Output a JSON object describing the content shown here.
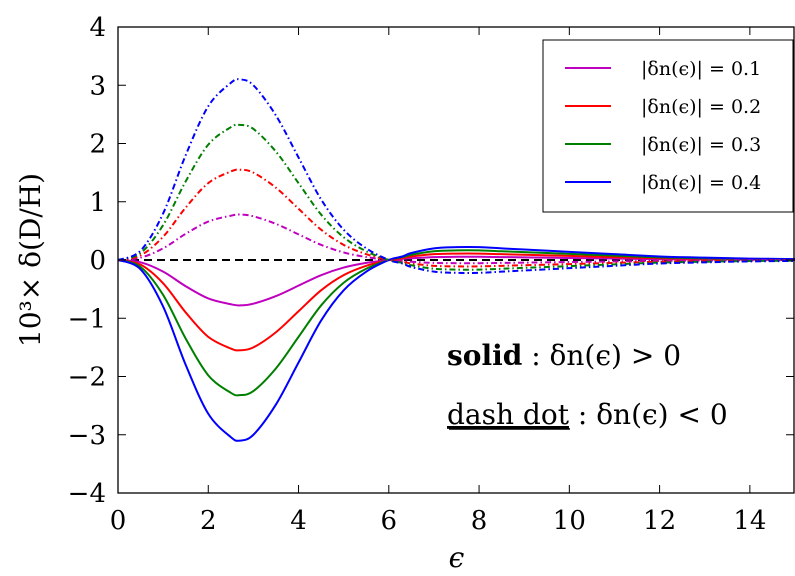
{
  "chart_data": {
    "type": "line",
    "xlabel": "ϵ",
    "ylabel": "10³× δ(D/H)",
    "xlim": [
      0,
      15
    ],
    "ylim": [
      -4,
      4
    ],
    "xticks": [
      "0",
      "2",
      "4",
      "6",
      "8",
      "10",
      "12",
      "14"
    ],
    "yticks": [
      "4",
      "3",
      "2",
      "1",
      "0",
      "−1",
      "−2",
      "−3",
      "−4"
    ],
    "x": [
      0.0,
      0.5,
      1.0,
      1.5,
      2.0,
      2.5,
      2.7,
      3.0,
      3.5,
      4.0,
      4.5,
      5.0,
      5.5,
      6.0,
      6.3,
      6.5,
      7.0,
      7.5,
      8.0,
      8.5,
      9.0,
      10.0,
      11.0,
      12.0,
      13.0,
      14.0,
      15.0
    ],
    "zero_line": {
      "style": "dashed",
      "color": "#000000",
      "y": 0
    },
    "series": [
      {
        "name": "|δn(ϵ)| = 0.1",
        "color": "#bf00bf",
        "style": "solid",
        "values": [
          0.0,
          -0.04,
          -0.2,
          -0.45,
          -0.66,
          -0.76,
          -0.78,
          -0.75,
          -0.62,
          -0.44,
          -0.26,
          -0.13,
          -0.05,
          0.0,
          0.02,
          0.03,
          0.05,
          0.055,
          0.055,
          0.05,
          0.045,
          0.035,
          0.025,
          0.015,
          0.01,
          0.006,
          0.004
        ]
      },
      {
        "name": "|δn(ϵ)| = 0.2",
        "color": "#ff0000",
        "style": "solid",
        "values": [
          0.0,
          -0.08,
          -0.4,
          -0.9,
          -1.32,
          -1.52,
          -1.55,
          -1.5,
          -1.24,
          -0.88,
          -0.52,
          -0.26,
          -0.1,
          0.0,
          0.03,
          0.06,
          0.1,
          0.11,
          0.11,
          0.1,
          0.09,
          0.07,
          0.05,
          0.03,
          0.02,
          0.012,
          0.008
        ]
      },
      {
        "name": "|δn(ϵ)| = 0.3",
        "color": "#007f00",
        "style": "solid",
        "values": [
          0.0,
          -0.12,
          -0.6,
          -1.35,
          -1.98,
          -2.28,
          -2.32,
          -2.25,
          -1.86,
          -1.32,
          -0.78,
          -0.39,
          -0.15,
          0.0,
          0.05,
          0.09,
          0.15,
          0.165,
          0.165,
          0.15,
          0.135,
          0.105,
          0.075,
          0.045,
          0.03,
          0.018,
          0.012
        ]
      },
      {
        "name": "|δn(ϵ)| = 0.4",
        "color": "#0000ff",
        "style": "solid",
        "values": [
          0.0,
          -0.16,
          -0.8,
          -1.8,
          -2.64,
          -3.04,
          -3.1,
          -3.0,
          -2.48,
          -1.76,
          -1.04,
          -0.52,
          -0.2,
          0.0,
          0.06,
          0.12,
          0.2,
          0.22,
          0.22,
          0.2,
          0.18,
          0.14,
          0.1,
          0.06,
          0.04,
          0.024,
          0.016
        ]
      },
      {
        "name": "",
        "color": "#bf00bf",
        "style": "dashdot",
        "values": [
          0.0,
          0.04,
          0.2,
          0.45,
          0.66,
          0.76,
          0.78,
          0.75,
          0.62,
          0.44,
          0.26,
          0.13,
          0.05,
          0.0,
          -0.02,
          -0.03,
          -0.05,
          -0.055,
          -0.055,
          -0.05,
          -0.045,
          -0.035,
          -0.025,
          -0.015,
          -0.01,
          -0.006,
          -0.004
        ]
      },
      {
        "name": "",
        "color": "#ff0000",
        "style": "dashdot",
        "values": [
          0.0,
          0.08,
          0.4,
          0.9,
          1.32,
          1.52,
          1.55,
          1.5,
          1.24,
          0.88,
          0.52,
          0.26,
          0.1,
          0.0,
          -0.03,
          -0.06,
          -0.1,
          -0.11,
          -0.11,
          -0.1,
          -0.09,
          -0.07,
          -0.05,
          -0.03,
          -0.02,
          -0.012,
          -0.008
        ]
      },
      {
        "name": "",
        "color": "#007f00",
        "style": "dashdot",
        "values": [
          0.0,
          0.12,
          0.6,
          1.35,
          1.98,
          2.28,
          2.32,
          2.25,
          1.86,
          1.32,
          0.78,
          0.39,
          0.15,
          0.0,
          -0.05,
          -0.09,
          -0.15,
          -0.165,
          -0.165,
          -0.15,
          -0.135,
          -0.105,
          -0.075,
          -0.045,
          -0.03,
          -0.018,
          -0.012
        ]
      },
      {
        "name": "",
        "color": "#0000ff",
        "style": "dashdot",
        "values": [
          0.0,
          0.16,
          0.8,
          1.8,
          2.64,
          3.04,
          3.1,
          3.0,
          2.48,
          1.76,
          1.04,
          0.52,
          0.2,
          0.0,
          -0.06,
          -0.12,
          -0.2,
          -0.22,
          -0.22,
          -0.2,
          -0.18,
          -0.14,
          -0.1,
          -0.06,
          -0.04,
          -0.024,
          -0.016
        ]
      }
    ],
    "legend": {
      "placement": "top-right",
      "entries": [
        {
          "label": "|δn(ϵ)| = 0.1",
          "color": "#bf00bf"
        },
        {
          "label": "|δn(ϵ)| = 0.2",
          "color": "#ff0000"
        },
        {
          "label": "|δn(ϵ)| = 0.3",
          "color": "#007f00"
        },
        {
          "label": "|δn(ϵ)| = 0.4",
          "color": "#0000ff"
        }
      ]
    },
    "annotations": {
      "solid_bold": "solid",
      "solid_rest": " : δn(ϵ) > 0",
      "dashdot_under": "dash dot",
      "dashdot_rest": " : δn(ϵ) < 0"
    }
  }
}
